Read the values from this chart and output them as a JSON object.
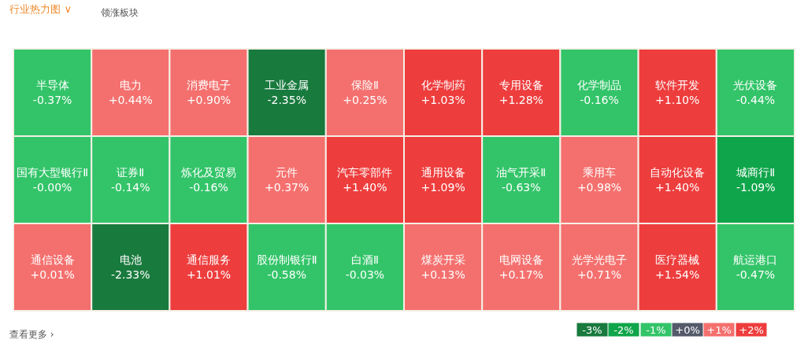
{
  "chart_data": [
    {
      "type": "other",
      "title": "行业热力图 ∨",
      "annotations": [
        "领涨板块",
        "查看更多 ›"
      ],
      "categories": [
        "半导体",
        "国有大型银行Ⅱ",
        "通信设备",
        "电力",
        "证券Ⅱ",
        "电池",
        "消费电子",
        "炼化及贸易",
        "通信服务",
        "工业金属",
        "元件",
        "股份制银行Ⅱ",
        "保险Ⅱ",
        "汽车零部件",
        "白酒Ⅱ",
        "化学制药",
        "通用设备",
        "煤炭开采",
        "专用设备",
        "油气开采Ⅱ",
        "电网设备",
        "化学制品",
        "软件开发",
        "光伏设备",
        "乘用车",
        "光学光电子",
        "自动化设备",
        "城商行Ⅱ",
        "医疗器械",
        "航运港口"
      ],
      "values": [
        -0.37,
        -0.0,
        0.01,
        0.44,
        -0.14,
        -2.33,
        0.9,
        -0.16,
        1.01,
        -2.35,
        0.37,
        -0.58,
        0.25,
        1.4,
        -0.03,
        1.03,
        1.09,
        0.13,
        1.28,
        -0.63,
        0.17,
        -0.16,
        1.1,
        -0.44,
        0.98,
        0.71,
        1.4,
        -1.09,
        1.54,
        -0.47
      ],
      "value_labels": [
        "-0.37%",
        "-0.00%",
        "+0.01%",
        "+0.44%",
        "-0.14%",
        "-2.33%",
        "+0.90%",
        "-0.16%",
        "+1.01%",
        "-2.35%",
        "+0.37%",
        "-0.58%",
        "+0.25%",
        "+1.40%",
        "-0.03%",
        "+1.03%",
        "+1.09%",
        "+0.13%",
        "+1.28%",
        "-0.63%",
        "+0.17%",
        "-0.16%",
        "+1.10%",
        "-0.44%",
        "+0.98%",
        "+0.71%",
        "+1.40%",
        "-1.09%",
        "+1.54%",
        "-0.47%"
      ]
    },
    {
      "type": "other",
      "values": [
        -3,
        -2,
        -1,
        0,
        1,
        2
      ],
      "value_labels": [
        "-3%",
        "-2%",
        "-1%",
        "+0%",
        "+1%",
        "+2%"
      ],
      "colors": [
        "#197a3e",
        "#0fa54a",
        "#33c469",
        "#545a6a",
        "#f4706e",
        "#ee3d3d"
      ]
    }
  ]
}
